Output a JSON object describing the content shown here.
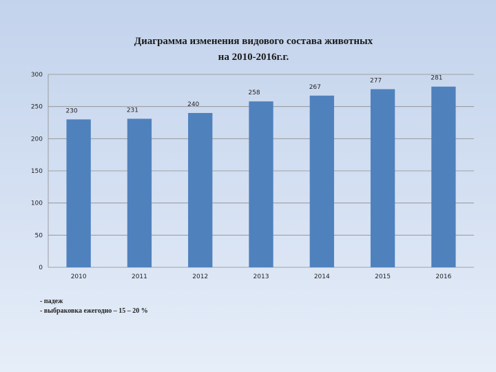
{
  "chart_data": {
    "type": "bar",
    "title": [
      "Диаграмма изменения видового состава животных",
      "на 2010-2016г.г."
    ],
    "categories": [
      "2010",
      "2011",
      "2012",
      "2013",
      "2014",
      "2015",
      "2016"
    ],
    "values": [
      230,
      231,
      240,
      258,
      267,
      277,
      281
    ],
    "color": "#4f81bd",
    "ylim": [
      0,
      300
    ],
    "yticks": [
      0,
      50,
      100,
      150,
      200,
      250,
      300
    ],
    "grid": true,
    "notes": [
      "- падеж",
      "- выбраковка ежегодно – 15 – 20 %"
    ]
  }
}
